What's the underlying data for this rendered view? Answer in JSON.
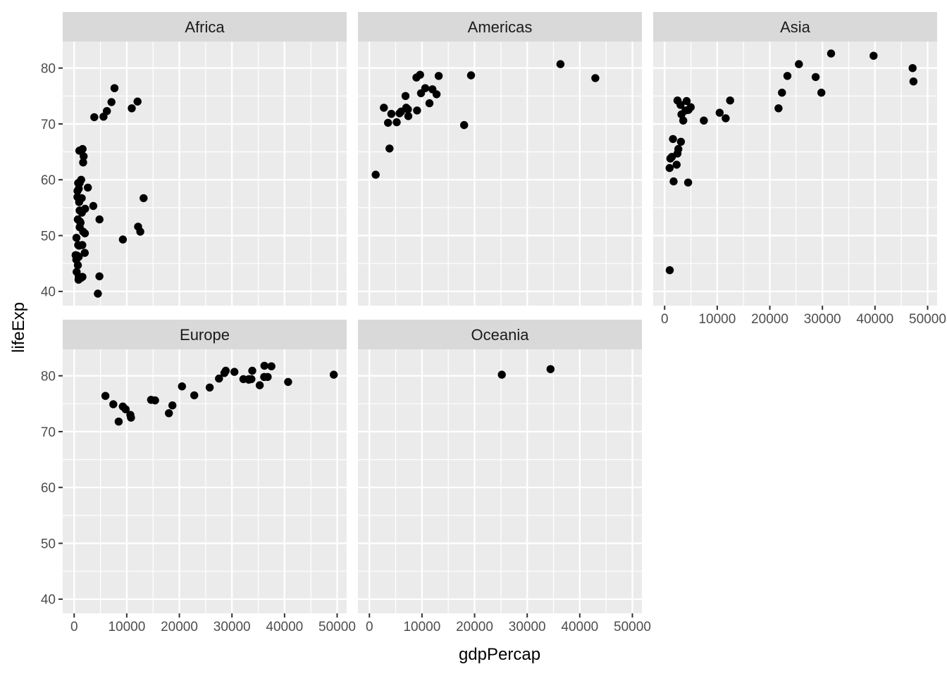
{
  "chart_data": {
    "type": "scatter",
    "title": "",
    "xlabel": "gdpPercap",
    "ylabel": "lifeExp",
    "facet_by": "continent",
    "grid": true,
    "legend": "none",
    "x_ticks": [
      0,
      10000,
      20000,
      30000,
      40000,
      50000
    ],
    "y_ticks": [
      40,
      50,
      60,
      70,
      80
    ],
    "x_minor_ticks": [
      5000,
      15000,
      25000,
      35000,
      45000
    ],
    "y_minor_ticks": [
      45,
      55,
      65,
      75
    ],
    "x_domain": [
      -2176,
      51811
    ],
    "y_domain": [
      37.46,
      84.75
    ],
    "facets": [
      {
        "label": "Africa",
        "points": [
          [
            6223,
            72.3
          ],
          [
            4797,
            42.7
          ],
          [
            1441,
            56.7
          ],
          [
            12570,
            50.7
          ],
          [
            1217,
            52.3
          ],
          [
            430,
            49.6
          ],
          [
            2042,
            50.4
          ],
          [
            706,
            44.7
          ],
          [
            1704,
            50.7
          ],
          [
            986,
            65.2
          ],
          [
            278,
            46.5
          ],
          [
            3633,
            55.3
          ],
          [
            1545,
            48.3
          ],
          [
            2082,
            54.8
          ],
          [
            5581,
            71.3
          ],
          [
            12154,
            51.6
          ],
          [
            641,
            58.0
          ],
          [
            691,
            52.9
          ],
          [
            13206,
            56.7
          ],
          [
            753,
            59.4
          ],
          [
            1328,
            60.0
          ],
          [
            943,
            56.0
          ],
          [
            579,
            46.4
          ],
          [
            1463,
            54.1
          ],
          [
            1569,
            42.6
          ],
          [
            415,
            45.7
          ],
          [
            12057,
            74.0
          ],
          [
            1045,
            59.4
          ],
          [
            759,
            48.3
          ],
          [
            1043,
            54.5
          ],
          [
            1803,
            64.2
          ],
          [
            10957,
            72.8
          ],
          [
            3820,
            71.2
          ],
          [
            824,
            42.1
          ],
          [
            4811,
            52.9
          ],
          [
            620,
            56.9
          ],
          [
            2014,
            46.9
          ],
          [
            7670,
            76.4
          ],
          [
            863,
            46.2
          ],
          [
            1598,
            65.5
          ],
          [
            1712,
            63.1
          ],
          [
            863,
            42.6
          ],
          [
            926,
            48.2
          ],
          [
            9270,
            49.3
          ],
          [
            2602,
            58.6
          ],
          [
            4513,
            39.6
          ],
          [
            1107,
            52.5
          ],
          [
            883,
            58.4
          ],
          [
            7093,
            73.9
          ],
          [
            1056,
            51.5
          ],
          [
            1271,
            42.4
          ],
          [
            470,
            43.5
          ]
        ]
      },
      {
        "label": "Americas",
        "points": [
          [
            12779,
            75.3
          ],
          [
            3822,
            65.6
          ],
          [
            9066,
            72.4
          ],
          [
            36319,
            80.7
          ],
          [
            13172,
            78.6
          ],
          [
            7007,
            72.9
          ],
          [
            9645,
            78.8
          ],
          [
            8948,
            78.3
          ],
          [
            6025,
            72.2
          ],
          [
            6873,
            75.0
          ],
          [
            5728,
            71.9
          ],
          [
            5186,
            70.3
          ],
          [
            1202,
            60.9
          ],
          [
            3548,
            70.2
          ],
          [
            7321,
            72.6
          ],
          [
            11978,
            76.2
          ],
          [
            2749,
            72.9
          ],
          [
            9809,
            75.5
          ],
          [
            4173,
            71.8
          ],
          [
            7409,
            71.4
          ],
          [
            19329,
            78.7
          ],
          [
            18009,
            69.8
          ],
          [
            42952,
            78.2
          ],
          [
            10611,
            76.4
          ],
          [
            11416,
            73.7
          ]
        ]
      },
      {
        "label": "Asia",
        "points": [
          [
            975,
            43.8
          ],
          [
            29796,
            75.6
          ],
          [
            1391,
            64.1
          ],
          [
            1714,
            59.7
          ],
          [
            4959,
            73.0
          ],
          [
            39725,
            82.2
          ],
          [
            2452,
            64.7
          ],
          [
            3541,
            70.6
          ],
          [
            11606,
            71.0
          ],
          [
            4471,
            59.5
          ],
          [
            25523,
            80.7
          ],
          [
            31656,
            82.6
          ],
          [
            4519,
            72.5
          ],
          [
            1593,
            67.3
          ],
          [
            23348,
            78.6
          ],
          [
            47307,
            77.6
          ],
          [
            10461,
            72.0
          ],
          [
            12452,
            74.2
          ],
          [
            3096,
            66.8
          ],
          [
            944,
            62.1
          ],
          [
            1091,
            63.8
          ],
          [
            22316,
            75.6
          ],
          [
            2606,
            65.5
          ],
          [
            3190,
            71.7
          ],
          [
            21655,
            72.8
          ],
          [
            47143,
            80.0
          ],
          [
            3970,
            72.4
          ],
          [
            4185,
            74.1
          ],
          [
            28718,
            78.4
          ],
          [
            7458,
            70.6
          ],
          [
            2442,
            74.2
          ],
          [
            3025,
            73.4
          ],
          [
            2281,
            62.7
          ]
        ]
      },
      {
        "label": "Europe",
        "points": [
          [
            5937,
            76.4
          ],
          [
            36126,
            79.8
          ],
          [
            33693,
            79.4
          ],
          [
            7446,
            74.9
          ],
          [
            10681,
            73.0
          ],
          [
            14619,
            75.7
          ],
          [
            22833,
            76.5
          ],
          [
            35278,
            78.3
          ],
          [
            33207,
            79.3
          ],
          [
            30470,
            80.7
          ],
          [
            32170,
            79.4
          ],
          [
            27538,
            79.5
          ],
          [
            18009,
            73.3
          ],
          [
            36181,
            81.8
          ],
          [
            40676,
            78.9
          ],
          [
            28570,
            80.5
          ],
          [
            9254,
            74.5
          ],
          [
            36798,
            79.8
          ],
          [
            49357,
            80.2
          ],
          [
            15390,
            75.6
          ],
          [
            20510,
            78.1
          ],
          [
            10808,
            72.5
          ],
          [
            9787,
            74.0
          ],
          [
            18678,
            74.7
          ],
          [
            25768,
            77.9
          ],
          [
            28821,
            80.9
          ],
          [
            33860,
            80.9
          ],
          [
            37506,
            81.7
          ],
          [
            8458,
            71.8
          ],
          [
            33203,
            79.4
          ]
        ]
      },
      {
        "label": "Oceania",
        "points": [
          [
            34435,
            81.2
          ],
          [
            25185,
            80.2
          ]
        ]
      }
    ]
  },
  "style": {
    "panel_bg": "#EBEBEB",
    "strip_bg": "#D9D9D9",
    "grid_color": "#FFFFFF",
    "point_color": "#000000",
    "tick_label_color": "#4D4D4D",
    "tick_mark_color": "#333333",
    "strip_text_color": "#1A1A1A",
    "axis_title_color": "#000000"
  }
}
